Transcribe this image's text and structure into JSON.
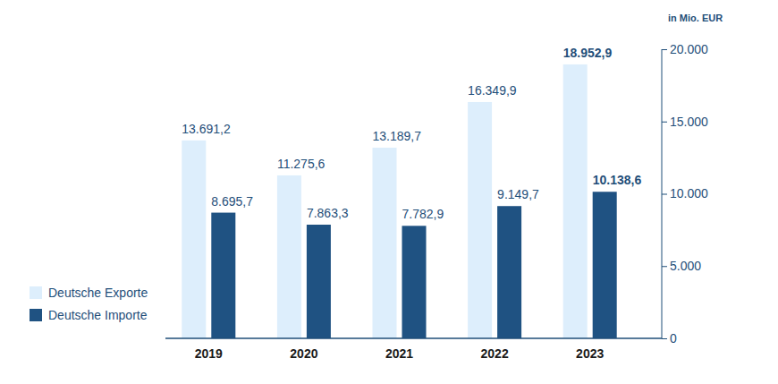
{
  "chart_data": {
    "type": "bar",
    "ylabel": "in Mio. EUR",
    "categories": [
      "2019",
      "2020",
      "2021",
      "2022",
      "2023"
    ],
    "series": [
      {
        "name": "Deutsche Exporte",
        "color": "#ddeefc",
        "values": [
          13691.2,
          11275.6,
          13189.7,
          16349.9,
          18952.9
        ],
        "value_labels": [
          "13.691,2",
          "11.275,6",
          "13.189,7",
          "16.349,9",
          "18.952,9"
        ]
      },
      {
        "name": "Deutsche Importe",
        "color": "#1f5282",
        "values": [
          8695.7,
          7863.3,
          7782.9,
          9149.7,
          10138.6
        ],
        "value_labels": [
          "8.695,7",
          "7.863,3",
          "7.782,9",
          "9.149,7",
          "10.138,6"
        ]
      }
    ],
    "ylim": [
      0,
      20000
    ],
    "yticks": [
      0,
      {
        "value": 5000,
        "label": "5.000"
      },
      {
        "value": 10000,
        "label": "10.000"
      },
      {
        "value": 15000,
        "label": "15.000"
      },
      {
        "value": 20000,
        "label": "20.000"
      }
    ],
    "data_labels": true,
    "legend": "bottom-left",
    "grid": false
  }
}
